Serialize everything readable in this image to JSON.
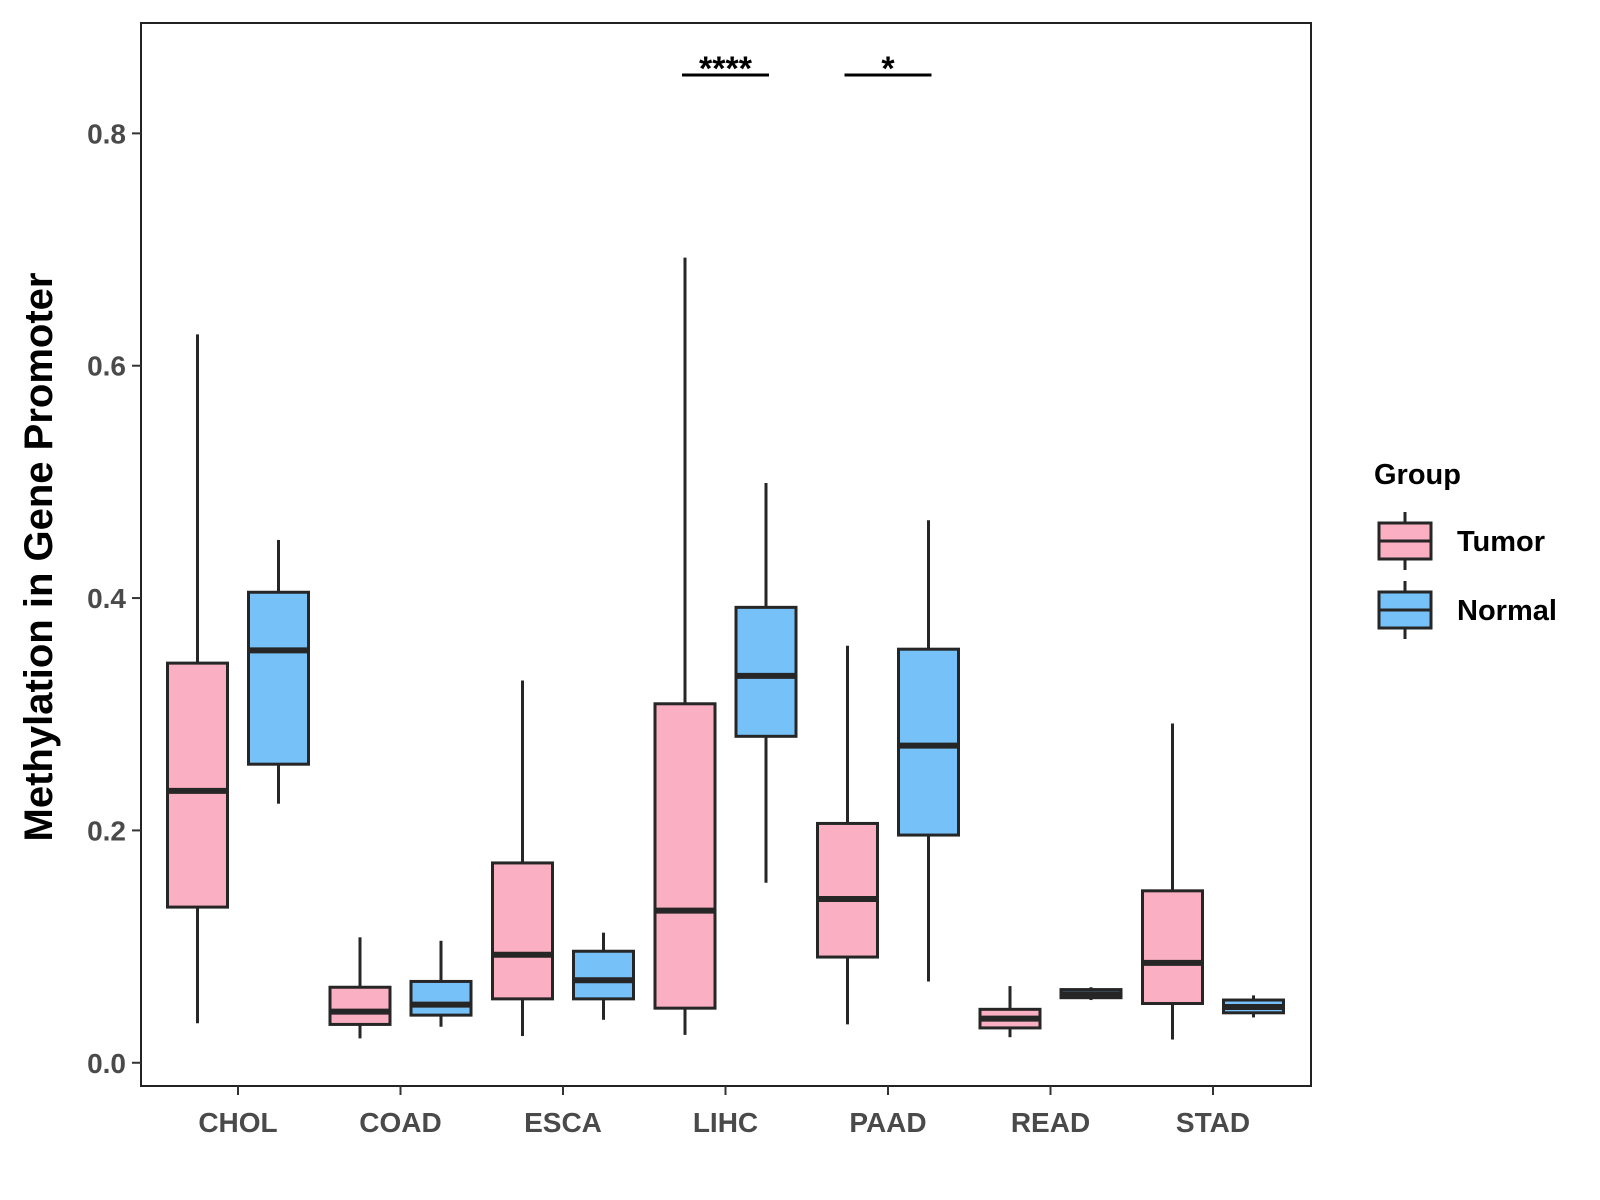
{
  "chart_data": {
    "type": "boxplot",
    "title": "",
    "xlabel": "",
    "ylabel": "Methylation in Gene Promoter",
    "ylim": [
      -0.02,
      0.895
    ],
    "yticks": [
      0.0,
      0.2,
      0.4,
      0.6,
      0.8
    ],
    "ytick_labels": [
      "0.0",
      "0.2",
      "0.4",
      "0.6",
      "0.8"
    ],
    "grid": false,
    "categories": [
      "CHOL",
      "COAD",
      "ESCA",
      "LIHC",
      "PAAD",
      "READ",
      "STAD"
    ],
    "legend": {
      "title": "Group",
      "placement": "right",
      "entries": [
        {
          "name": "Tumor",
          "color": "#FBAFC2"
        },
        {
          "name": "Normal",
          "color": "#75C1F8"
        }
      ]
    },
    "series": [
      {
        "name": "Tumor",
        "color": "#FBAFC2",
        "boxes": [
          {
            "min": 0.034,
            "q1": 0.134,
            "median": 0.234,
            "q3": 0.344,
            "max": 0.627
          },
          {
            "min": 0.021,
            "q1": 0.033,
            "median": 0.044,
            "q3": 0.065,
            "max": 0.108
          },
          {
            "min": 0.023,
            "q1": 0.055,
            "median": 0.093,
            "q3": 0.172,
            "max": 0.329
          },
          {
            "min": 0.024,
            "q1": 0.047,
            "median": 0.131,
            "q3": 0.309,
            "max": 0.693
          },
          {
            "min": 0.033,
            "q1": 0.091,
            "median": 0.141,
            "q3": 0.206,
            "max": 0.359
          },
          {
            "min": 0.022,
            "q1": 0.03,
            "median": 0.038,
            "q3": 0.046,
            "max": 0.066
          },
          {
            "min": 0.02,
            "q1": 0.051,
            "median": 0.086,
            "q3": 0.148,
            "max": 0.292
          }
        ]
      },
      {
        "name": "Normal",
        "color": "#75C1F8",
        "boxes": [
          {
            "min": 0.223,
            "q1": 0.257,
            "median": 0.355,
            "q3": 0.405,
            "max": 0.45
          },
          {
            "min": 0.031,
            "q1": 0.041,
            "median": 0.05,
            "q3": 0.07,
            "max": 0.105
          },
          {
            "min": 0.037,
            "q1": 0.055,
            "median": 0.071,
            "q3": 0.096,
            "max": 0.112
          },
          {
            "min": 0.155,
            "q1": 0.281,
            "median": 0.333,
            "q3": 0.392,
            "max": 0.499
          },
          {
            "min": 0.07,
            "q1": 0.196,
            "median": 0.273,
            "q3": 0.356,
            "max": 0.467
          },
          {
            "min": 0.054,
            "q1": 0.056,
            "median": 0.059,
            "q3": 0.063,
            "max": 0.065
          },
          {
            "min": 0.039,
            "q1": 0.043,
            "median": 0.048,
            "q3": 0.054,
            "max": 0.058
          }
        ]
      }
    ],
    "significance": [
      {
        "category": "LIHC",
        "label": "****"
      },
      {
        "category": "PAAD",
        "label": "*"
      }
    ]
  }
}
